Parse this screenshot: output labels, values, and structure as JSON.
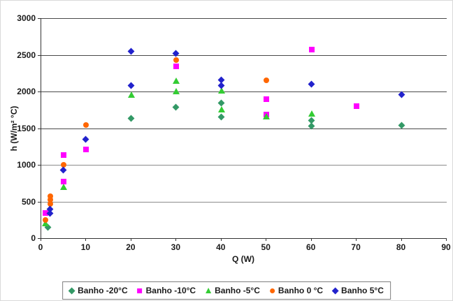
{
  "chart": {
    "x_axis_title": "Q (W)",
    "y_axis_title": "h (W/m² °C)",
    "x_ticks": [
      0,
      10,
      20,
      30,
      40,
      50,
      60,
      70,
      80,
      90
    ],
    "y_ticks": [
      0,
      500,
      1000,
      1500,
      2000,
      2500,
      3000
    ]
  },
  "chart_data": {
    "type": "scatter",
    "title": "",
    "xlabel": "Q (W)",
    "ylabel": "h (W/m² °C)",
    "xlim": [
      0,
      90
    ],
    "ylim": [
      0,
      3000
    ],
    "grid": "horizontal",
    "legend_position": "bottom",
    "series": [
      {
        "name": "Banho -20°C",
        "marker": "diamond",
        "color": "#339966",
        "points": [
          [
            1.5,
            140
          ],
          [
            20,
            1630
          ],
          [
            30,
            1780
          ],
          [
            40,
            1840
          ],
          [
            40,
            1650
          ],
          [
            60,
            1600
          ],
          [
            60,
            1520
          ],
          [
            80,
            1530
          ]
        ]
      },
      {
        "name": "Banho -10°C",
        "marker": "square",
        "color": "#FF00FF",
        "points": [
          [
            1,
            340
          ],
          [
            5,
            1130
          ],
          [
            5,
            770
          ],
          [
            10,
            1210
          ],
          [
            30,
            2340
          ],
          [
            50,
            1900
          ],
          [
            50,
            1690
          ],
          [
            60,
            2570
          ],
          [
            70,
            1800
          ]
        ]
      },
      {
        "name": "Banho -5°C",
        "marker": "triangle",
        "color": "#33CC33",
        "points": [
          [
            1,
            200
          ],
          [
            5,
            700
          ],
          [
            20,
            1950
          ],
          [
            30,
            2140
          ],
          [
            30,
            2000
          ],
          [
            40,
            2010
          ],
          [
            40,
            1750
          ],
          [
            50,
            1660
          ],
          [
            60,
            1700
          ]
        ]
      },
      {
        "name": "Banho 0 °C",
        "marker": "circle",
        "color": "#FF6600",
        "points": [
          [
            1,
            250
          ],
          [
            2,
            570
          ],
          [
            2,
            520
          ],
          [
            2,
            470
          ],
          [
            5,
            1000
          ],
          [
            10,
            1540
          ],
          [
            30,
            2430
          ],
          [
            50,
            2150
          ]
        ]
      },
      {
        "name": "Banho 5°C",
        "marker": "diamond",
        "color": "#2222CC",
        "points": [
          [
            2,
            390
          ],
          [
            2,
            330
          ],
          [
            5,
            920
          ],
          [
            10,
            1340
          ],
          [
            20,
            2540
          ],
          [
            20,
            2080
          ],
          [
            30,
            2510
          ],
          [
            40,
            2150
          ],
          [
            40,
            2080
          ],
          [
            60,
            2100
          ],
          [
            80,
            1950
          ]
        ]
      }
    ]
  }
}
